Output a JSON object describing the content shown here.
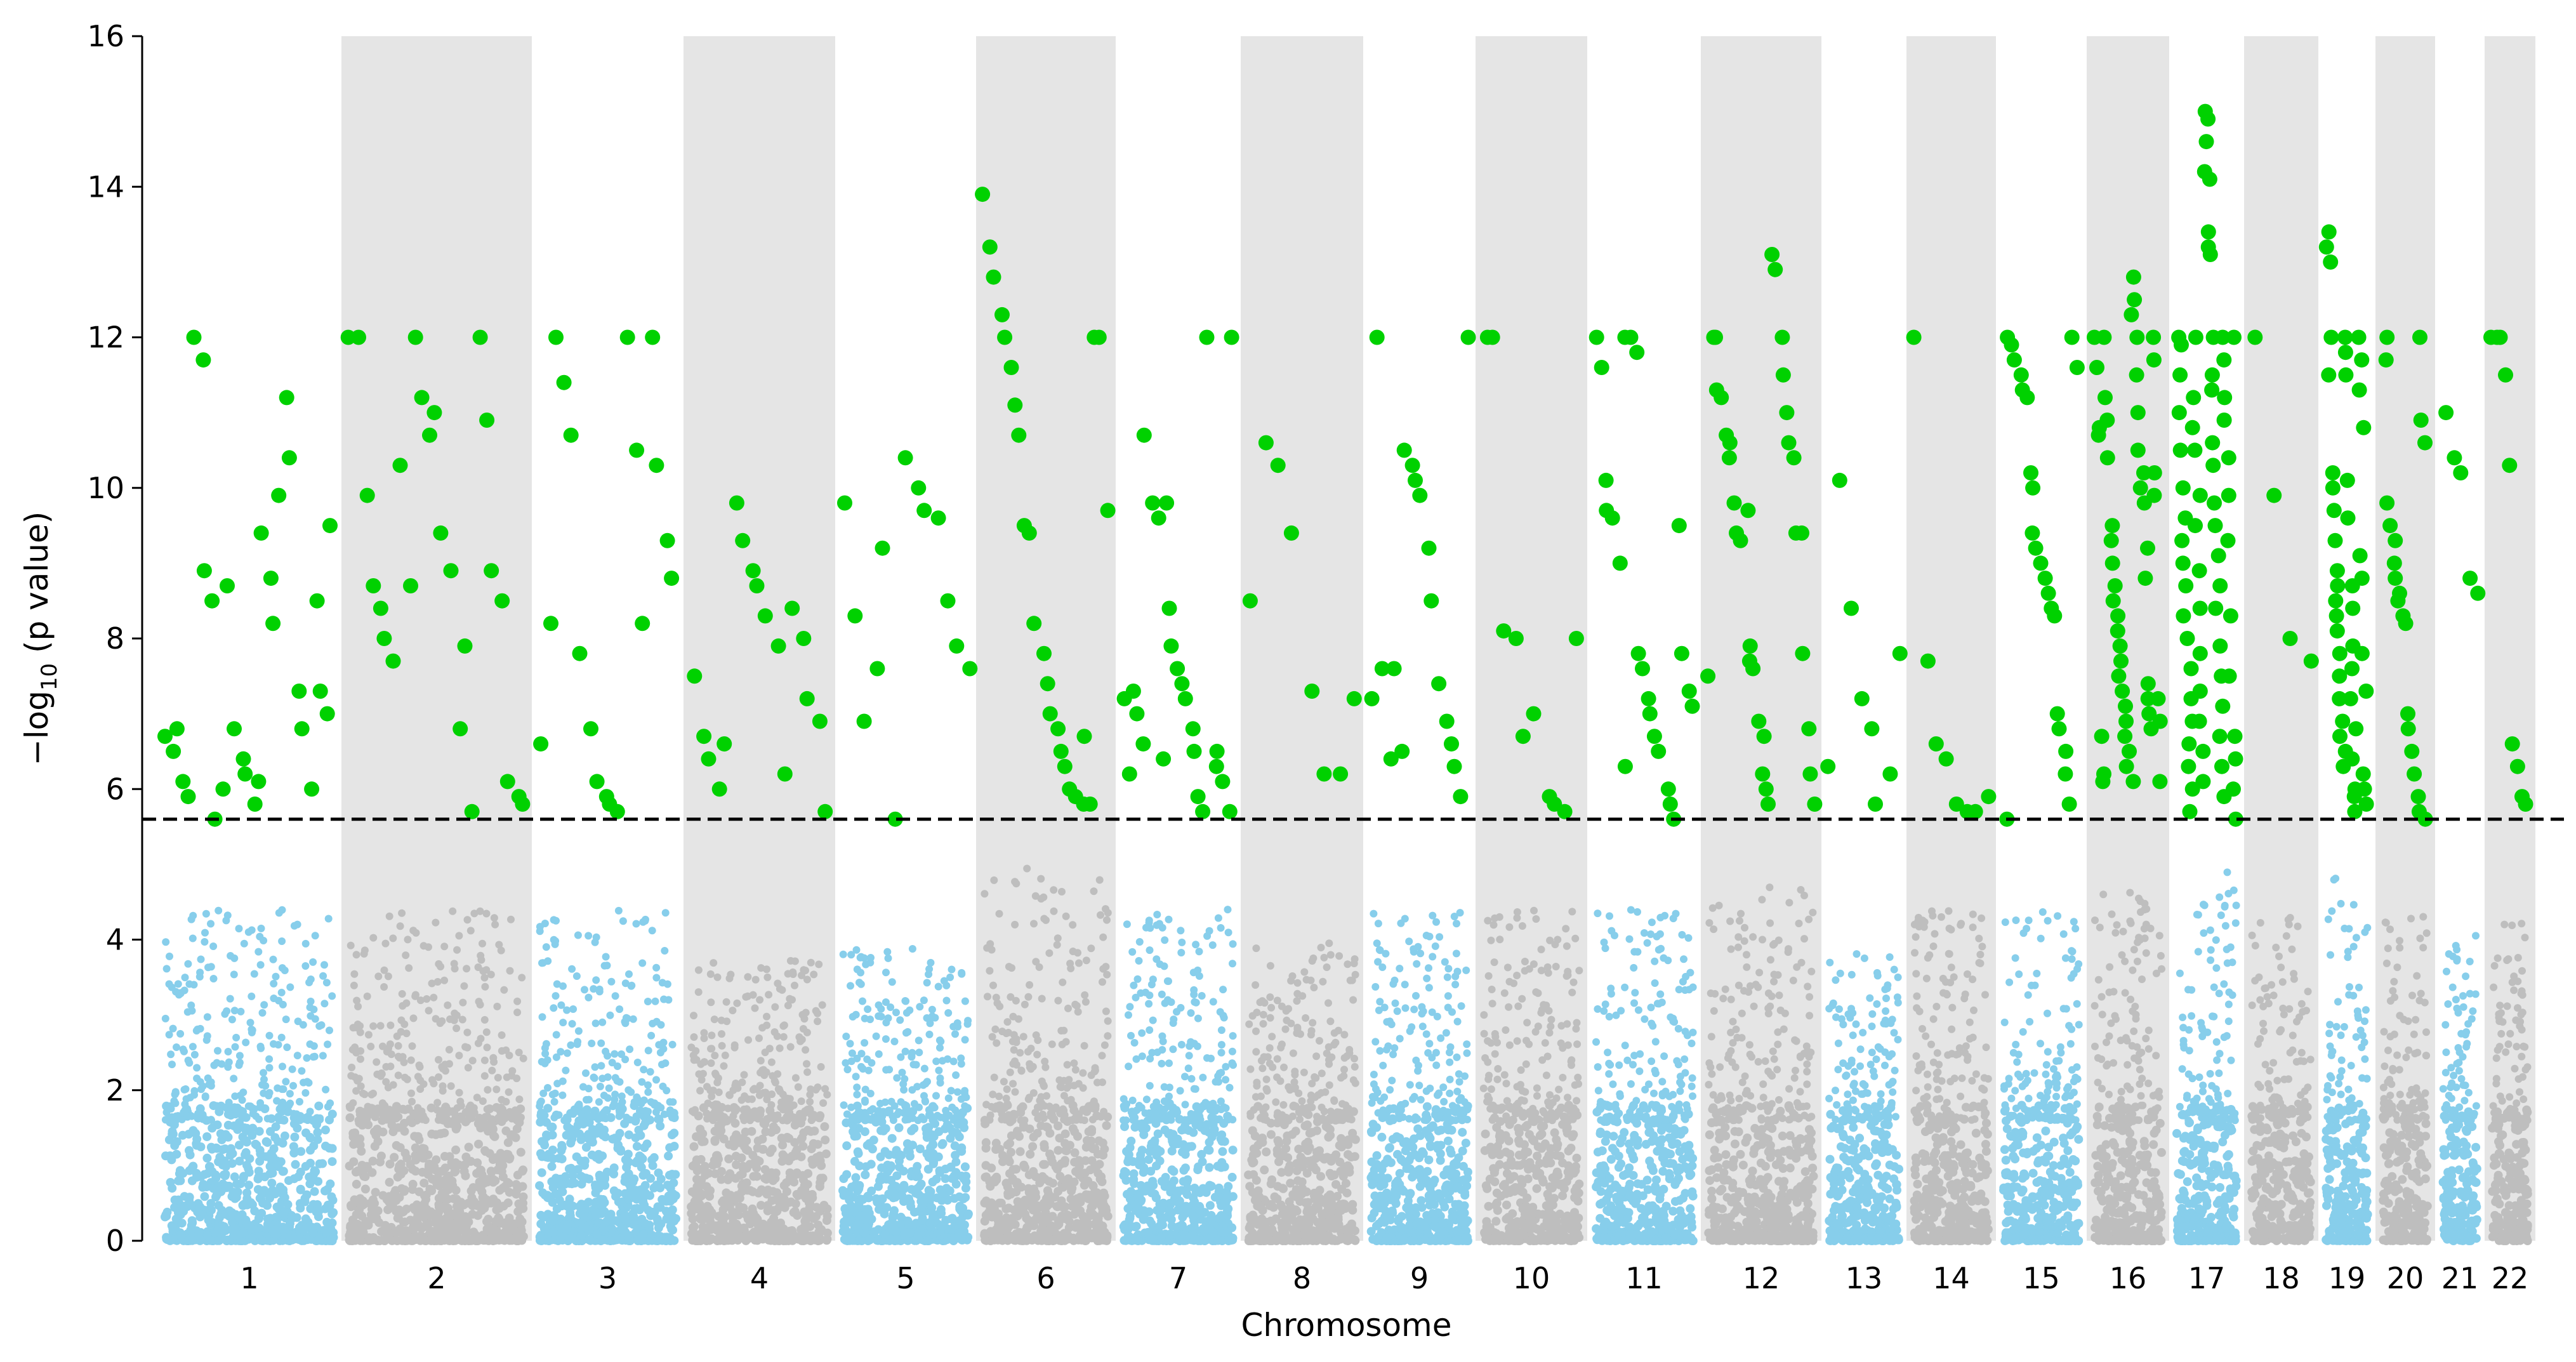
{
  "chart_data": {
    "type": "scatter",
    "subtype": "manhattan",
    "xlabel": "Chromosome",
    "ylabel": "−log10 (p value)",
    "ylabel_parts": {
      "prefix": "−log",
      "subscript": "10",
      "suffix": " (p value)"
    },
    "ylim": [
      0,
      16
    ],
    "yticks": [
      0,
      2,
      4,
      6,
      8,
      10,
      12,
      14,
      16
    ],
    "threshold": 5.6,
    "threshold_style": "dashed",
    "colors": {
      "odd_chromosomes": "#87ceeb",
      "even_chromosomes": "#bebebe",
      "significant": "#00d100",
      "even_band": "#e5e5e5",
      "threshold_line": "#000000"
    },
    "chromosomes": [
      {
        "label": "1",
        "max": 12.0,
        "sig": [
          6.7,
          6.5,
          6.8,
          6.1,
          5.9,
          12.0,
          11.7,
          8.9,
          8.5,
          5.6,
          6.0,
          8.7,
          6.8,
          6.4,
          6.2,
          5.8,
          6.1,
          9.4,
          8.8,
          8.2,
          9.9,
          11.2,
          10.4,
          7.3,
          6.8,
          6.0,
          8.5,
          7.3,
          7.0,
          9.5
        ]
      },
      {
        "label": "2",
        "max": 12.0,
        "sig": [
          12.0,
          12.0,
          9.9,
          8.7,
          8.4,
          8.0,
          7.7,
          10.3,
          8.7,
          12.0,
          11.2,
          10.7,
          11.0,
          9.4,
          8.9,
          6.8,
          7.9,
          5.7,
          12.0,
          10.9,
          8.9,
          8.5,
          6.1,
          5.9,
          5.8
        ]
      },
      {
        "label": "3",
        "max": 12.0,
        "sig": [
          6.6,
          8.2,
          12.0,
          11.4,
          10.7,
          7.8,
          6.8,
          6.1,
          5.9,
          5.8,
          5.7,
          12.0,
          10.5,
          8.2,
          12.0,
          10.3,
          9.3,
          8.8
        ]
      },
      {
        "label": "4",
        "max": 9.8,
        "sig": [
          7.5,
          6.7,
          6.4,
          6.0,
          6.6,
          9.8,
          9.3,
          8.9,
          8.7,
          8.3,
          7.9,
          6.2,
          8.4,
          8.0,
          7.2,
          6.9,
          5.7
        ]
      },
      {
        "label": "5",
        "max": 10.4,
        "sig": [
          9.8,
          8.3,
          6.9,
          7.6,
          9.2,
          5.6,
          10.4,
          10.0,
          9.7,
          9.6,
          8.5,
          7.9,
          7.6
        ]
      },
      {
        "label": "6",
        "max": 13.9,
        "sig": [
          13.9,
          13.2,
          12.8,
          12.3,
          12.0,
          11.6,
          11.1,
          10.7,
          9.5,
          9.4,
          8.2,
          7.8,
          7.4,
          7.0,
          6.8,
          6.5,
          6.3,
          6.0,
          5.9,
          5.8,
          6.7,
          5.8,
          12.0,
          12.0,
          9.7
        ]
      },
      {
        "label": "7",
        "max": 12.0,
        "sig": [
          7.2,
          6.2,
          7.3,
          7.0,
          6.6,
          10.7,
          9.8,
          9.6,
          6.4,
          9.8,
          8.4,
          7.9,
          7.6,
          7.4,
          7.2,
          6.8,
          6.5,
          5.9,
          5.7,
          12.0,
          6.5,
          6.3,
          6.1,
          5.7,
          12.0
        ]
      },
      {
        "label": "8",
        "max": 10.6,
        "sig": [
          8.5,
          10.6,
          10.3,
          9.4,
          7.3,
          6.2,
          6.2,
          7.2
        ]
      },
      {
        "label": "9",
        "max": 12.0,
        "sig": [
          7.2,
          12.0,
          7.6,
          6.4,
          7.6,
          6.5,
          10.5,
          10.3,
          10.1,
          9.9,
          9.2,
          8.5,
          7.4,
          6.9,
          6.6,
          6.3,
          5.9,
          12.0
        ]
      },
      {
        "label": "10",
        "max": 12.0,
        "sig": [
          12.0,
          12.0,
          8.1,
          8.0,
          6.7,
          7.0,
          5.9,
          5.8,
          5.7,
          8.0
        ]
      },
      {
        "label": "11",
        "max": 12.0,
        "sig": [
          12.0,
          11.6,
          10.1,
          9.7,
          9.6,
          9.0,
          6.3,
          12.0,
          12.0,
          11.8,
          7.8,
          7.6,
          7.2,
          7.0,
          6.7,
          6.5,
          6.0,
          5.8,
          5.6,
          9.5,
          7.8,
          7.3,
          7.1
        ]
      },
      {
        "label": "12",
        "max": 13.1,
        "sig": [
          7.5,
          12.0,
          12.0,
          11.3,
          11.2,
          10.7,
          10.6,
          10.4,
          9.8,
          9.4,
          9.3,
          9.7,
          7.9,
          7.7,
          7.6,
          6.9,
          6.7,
          6.2,
          6.0,
          5.8,
          13.1,
          12.9,
          12.0,
          11.5,
          11.0,
          10.6,
          10.4,
          9.4,
          9.4,
          7.8,
          6.8,
          6.2,
          5.8
        ]
      },
      {
        "label": "13",
        "max": 10.1,
        "sig": [
          6.3,
          10.1,
          8.4,
          7.2,
          6.8,
          5.8,
          6.2,
          7.8
        ]
      },
      {
        "label": "14",
        "max": 12.0,
        "sig": [
          12.0,
          7.7,
          6.6,
          6.4,
          5.8,
          5.7,
          5.7,
          5.9
        ]
      },
      {
        "label": "15",
        "max": 12.0,
        "sig": [
          5.6,
          12.0,
          11.9,
          11.7,
          11.5,
          11.3,
          11.2,
          10.2,
          10.0,
          9.4,
          9.2,
          9.0,
          8.8,
          8.6,
          8.4,
          8.3,
          7.0,
          6.8,
          6.5,
          6.2,
          5.8,
          12.0,
          11.6
        ]
      },
      {
        "label": "16",
        "max": 12.8,
        "sig": [
          12.0,
          11.6,
          10.8,
          10.7,
          6.7,
          6.2,
          6.1,
          12.0,
          11.2,
          10.9,
          10.4,
          9.5,
          9.3,
          9.0,
          8.7,
          8.5,
          8.3,
          8.1,
          7.9,
          7.7,
          7.5,
          7.3,
          7.1,
          6.9,
          6.7,
          6.5,
          6.3,
          6.1,
          12.8,
          12.5,
          12.3,
          12.0,
          11.5,
          11.0,
          10.5,
          10.2,
          10.0,
          9.8,
          9.2,
          8.8,
          7.4,
          7.2,
          7.0,
          6.8,
          12.0,
          11.7,
          10.2,
          9.9,
          7.2,
          6.9,
          6.1
        ]
      },
      {
        "label": "17",
        "max": 15.0,
        "sig": [
          12.0,
          11.9,
          11.5,
          11.0,
          10.5,
          10.0,
          9.6,
          9.3,
          9.0,
          8.7,
          8.3,
          8.0,
          7.6,
          7.2,
          6.9,
          6.6,
          6.3,
          6.0,
          5.7,
          12.0,
          11.2,
          10.8,
          10.5,
          9.9,
          9.5,
          8.9,
          8.4,
          7.8,
          7.3,
          6.9,
          6.5,
          6.1,
          15.0,
          14.9,
          14.6,
          14.2,
          14.1,
          13.4,
          13.2,
          13.1,
          12.0,
          11.5,
          11.3,
          10.6,
          10.3,
          9.8,
          9.5,
          9.1,
          8.7,
          8.4,
          7.9,
          7.5,
          7.1,
          6.7,
          6.3,
          5.9,
          12.0,
          11.7,
          11.2,
          10.9,
          10.4,
          9.9,
          9.3,
          8.3,
          7.5,
          6.7,
          6.4,
          6.0,
          5.6,
          12.0
        ]
      },
      {
        "label": "18",
        "max": 12.0,
        "sig": [
          12.0,
          9.9,
          8.0,
          7.7
        ]
      },
      {
        "label": "19",
        "max": 13.4,
        "sig": [
          13.4,
          13.2,
          13.0,
          12.0,
          11.5,
          10.2,
          10.0,
          9.7,
          9.3,
          8.9,
          8.7,
          8.5,
          8.3,
          8.1,
          7.8,
          7.5,
          7.2,
          6.9,
          6.7,
          6.5,
          6.3,
          12.0,
          11.8,
          11.5,
          10.1,
          9.6,
          8.7,
          8.4,
          7.9,
          7.6,
          7.2,
          6.8,
          6.4,
          6.0,
          5.9,
          5.7,
          12.0,
          11.7,
          11.3,
          10.8,
          9.1,
          8.8,
          7.8,
          7.3,
          6.2,
          6.0,
          5.8
        ]
      },
      {
        "label": "20",
        "max": 12.0,
        "sig": [
          12.0,
          11.7,
          9.8,
          9.5,
          9.3,
          9.0,
          8.8,
          8.6,
          8.5,
          8.3,
          8.2,
          7.0,
          6.8,
          6.5,
          6.2,
          5.9,
          5.7,
          12.0,
          10.9,
          10.6,
          5.6
        ]
      },
      {
        "label": "21",
        "max": 11.0,
        "sig": [
          11.0,
          10.4,
          10.2,
          8.8,
          8.6
        ]
      },
      {
        "label": "22",
        "max": 12.0,
        "sig": [
          12.0,
          12.0,
          12.0,
          11.5,
          10.3,
          6.6,
          6.3,
          5.9,
          5.8
        ]
      }
    ]
  }
}
